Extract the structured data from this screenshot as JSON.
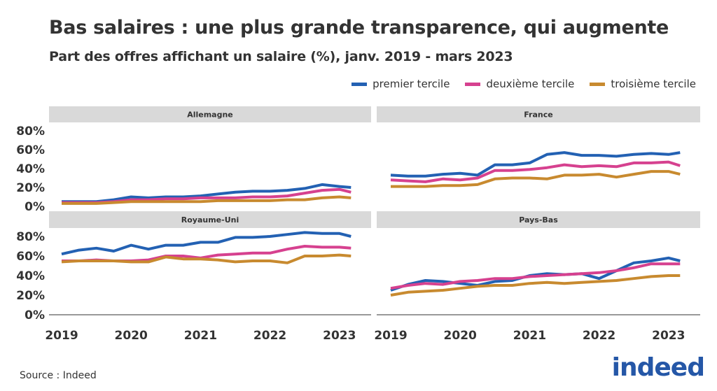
{
  "title": "Bas salaires : une plus grande transparence, qui augmente",
  "subtitle": "Part des offres affichant un salaire (%), janv. 2019 - mars 2023",
  "source": "Source : Indeed",
  "logo": "indeed",
  "chart_data": {
    "type": "line",
    "x": [
      "2019-01",
      "2019-04",
      "2019-07",
      "2019-10",
      "2020-01",
      "2020-04",
      "2020-07",
      "2020-10",
      "2021-01",
      "2021-04",
      "2021-07",
      "2021-10",
      "2022-01",
      "2022-04",
      "2022-07",
      "2022-10",
      "2023-01",
      "2023-03"
    ],
    "x_ticks": [
      "2019",
      "2020",
      "2021",
      "2022",
      "2023"
    ],
    "y_ticks": [
      "0%",
      "20%",
      "40%",
      "60%",
      "80%"
    ],
    "ylim": [
      0,
      85
    ],
    "legend": "top-right",
    "legend_labels": [
      "premier tercile",
      "deuxième tercile",
      "troisième tercile"
    ],
    "colors": [
      "#2361b3",
      "#d6418f",
      "#c88a2f"
    ],
    "panels": [
      {
        "name": "Allemagne",
        "series": [
          [
            5,
            5,
            5,
            7,
            10,
            9,
            10,
            10,
            11,
            13,
            15,
            16,
            16,
            17,
            19,
            23,
            21,
            20
          ],
          [
            4,
            4,
            4,
            5,
            7,
            7,
            8,
            8,
            9,
            9,
            9,
            10,
            10,
            11,
            14,
            17,
            18,
            15
          ],
          [
            3,
            3,
            3,
            4,
            5,
            5,
            5,
            5,
            5,
            6,
            6,
            6,
            6,
            7,
            7,
            9,
            10,
            9
          ]
        ]
      },
      {
        "name": "France",
        "series": [
          [
            33,
            32,
            32,
            34,
            35,
            33,
            44,
            44,
            46,
            55,
            57,
            54,
            54,
            53,
            55,
            56,
            55,
            57
          ],
          [
            28,
            27,
            26,
            29,
            28,
            30,
            38,
            38,
            39,
            41,
            44,
            42,
            43,
            42,
            46,
            46,
            47,
            43
          ],
          [
            21,
            21,
            21,
            22,
            22,
            23,
            29,
            30,
            30,
            29,
            33,
            33,
            34,
            31,
            34,
            37,
            37,
            34
          ]
        ]
      },
      {
        "name": "Royaume-Uni",
        "series": [
          [
            62,
            66,
            68,
            65,
            71,
            67,
            71,
            71,
            74,
            74,
            79,
            79,
            80,
            82,
            84,
            83,
            83,
            80
          ],
          [
            55,
            55,
            56,
            55,
            55,
            56,
            60,
            60,
            58,
            61,
            62,
            63,
            63,
            67,
            70,
            69,
            69,
            68
          ],
          [
            54,
            55,
            55,
            55,
            54,
            54,
            59,
            57,
            57,
            56,
            54,
            55,
            55,
            53,
            60,
            60,
            61,
            60
          ]
        ]
      },
      {
        "name": "Pays-Bas",
        "series": [
          [
            25,
            31,
            35,
            34,
            32,
            30,
            34,
            35,
            40,
            42,
            41,
            42,
            37,
            45,
            53,
            55,
            58,
            55
          ],
          [
            27,
            30,
            32,
            31,
            34,
            35,
            37,
            37,
            39,
            40,
            41,
            42,
            43,
            45,
            48,
            52,
            52,
            52
          ],
          [
            20,
            23,
            24,
            25,
            27,
            29,
            30,
            30,
            32,
            33,
            32,
            33,
            34,
            35,
            37,
            39,
            40,
            40
          ]
        ]
      }
    ]
  }
}
